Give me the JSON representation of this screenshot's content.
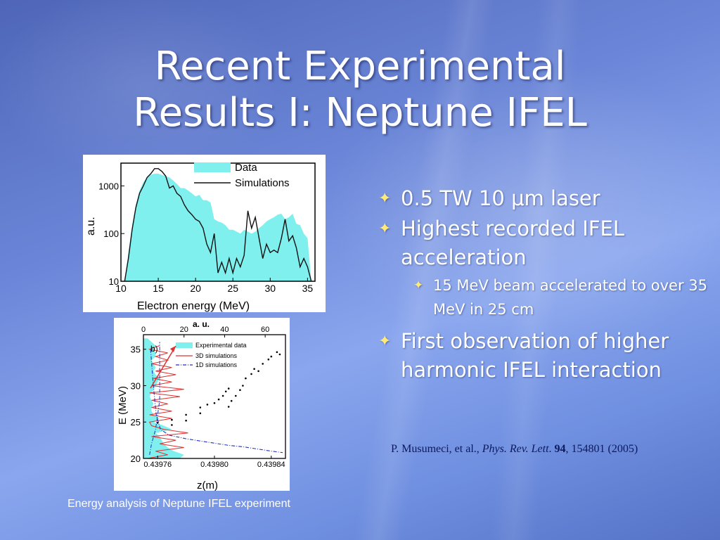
{
  "slide": {
    "title_line1": "Recent Experimental",
    "title_line2": "Results I: Neptune IFEL",
    "caption": "Energy analysis of Neptune IFEL experiment",
    "bullets": {
      "b1_pre": "0.5 TW 10 ",
      "b1_mu": "μ",
      "b1_post": "m laser",
      "b2": "Highest recorded IFEL acceleration",
      "b2_sub": "15 MeV beam accelerated to over 35 MeV in 25 cm",
      "b3": "First observation of higher harmonic IFEL interaction"
    },
    "reference": {
      "authors": "P. Musumeci, et al., ",
      "journal": "Phys. Rev. Lett",
      "dot": ". ",
      "volume": "94",
      "rest": ", 154801 (2005)"
    },
    "icons": {
      "bullet": "star-bullet-icon"
    },
    "colors": {
      "data_fill": "#7ff0ee",
      "simulation_line": "#111111",
      "sim3d_line": "#e03030",
      "sim1d_line": "#2030c0",
      "arrow": "#e03030",
      "bullet_star": "#ffe97a",
      "reference_text": "#0c1a5e"
    }
  },
  "chart_data": [
    {
      "type": "area",
      "xlabel": "Electron energy (MeV)",
      "ylabel": "a.u.",
      "xlim": [
        10,
        36
      ],
      "ylim": [
        10,
        3000
      ],
      "yscale": "log",
      "xticks": [
        10,
        15,
        20,
        25,
        30,
        35
      ],
      "yticks": [
        10,
        100,
        1000
      ],
      "ytick_labels": [
        "10",
        "100",
        "1000"
      ],
      "legend": [
        "Data",
        "Simulations"
      ],
      "legend_position": "top-right",
      "series": [
        {
          "name": "Data",
          "style": "filled",
          "x": [
            10.5,
            11,
            11.5,
            12,
            12.5,
            13,
            13.5,
            14,
            14.5,
            15,
            15.5,
            16,
            16.5,
            17,
            17.5,
            18,
            18.5,
            19,
            19.5,
            20,
            20.5,
            21,
            21.5,
            22,
            22.5,
            23,
            23.5,
            24,
            24.5,
            25,
            25.5,
            26,
            26.5,
            27,
            27.5,
            28,
            28.5,
            29,
            29.5,
            30,
            30.5,
            31,
            31.5,
            32,
            32.5,
            33,
            33.5,
            34,
            34.5,
            35,
            35.5
          ],
          "y": [
            10,
            40,
            150,
            400,
            800,
            1200,
            1500,
            1700,
            1800,
            1800,
            1700,
            1600,
            1500,
            1300,
            1100,
            900,
            900,
            800,
            700,
            600,
            650,
            500,
            500,
            450,
            200,
            180,
            170,
            150,
            120,
            120,
            110,
            100,
            120,
            110,
            100,
            110,
            130,
            150,
            180,
            200,
            220,
            250,
            260,
            200,
            220,
            260,
            160,
            150,
            100,
            80,
            10
          ]
        },
        {
          "name": "Simulations",
          "style": "line",
          "x": [
            10.5,
            11,
            11.5,
            12,
            12.5,
            13,
            13.5,
            14,
            14.5,
            15,
            15.5,
            16,
            16.5,
            17,
            17.5,
            18,
            18.5,
            19,
            19.5,
            20,
            20.5,
            21,
            21.5,
            22,
            22.5,
            23,
            23.5,
            24,
            24.5,
            25,
            25.5,
            26,
            26.5,
            27,
            27.5,
            28,
            28.5,
            29,
            29.5,
            30,
            30.5,
            31,
            31.5,
            32,
            32.5,
            33,
            33.5,
            34,
            34.5,
            35,
            35.5
          ],
          "y": [
            10,
            30,
            120,
            350,
            700,
            1000,
            1500,
            1800,
            2300,
            2300,
            2000,
            1600,
            900,
            1000,
            700,
            600,
            400,
            300,
            250,
            200,
            180,
            130,
            60,
            40,
            100,
            15,
            25,
            15,
            30,
            15,
            30,
            20,
            35,
            300,
            130,
            220,
            80,
            30,
            60,
            40,
            45,
            40,
            80,
            200,
            70,
            90,
            50,
            20,
            30,
            20,
            10
          ]
        }
      ]
    },
    {
      "type": "line",
      "panel_label": "b)",
      "xlabel": "z(m)",
      "ylabel": "E (MeV)",
      "top_xlabel": "a. u.",
      "xlim": [
        0.43975,
        0.43985
      ],
      "ylim": [
        20,
        37
      ],
      "top_xlim": [
        0,
        70
      ],
      "xticks": [
        "0.43976",
        "0.43980",
        "0.43984"
      ],
      "yticks": [
        20,
        25,
        30,
        35
      ],
      "top_xticks": [
        0,
        20,
        40,
        60
      ],
      "legend": [
        "Experimental data",
        "3D simulations",
        "1D simulations"
      ],
      "legend_position": "top-right",
      "spectra_on_top_axis": [
        {
          "name": "Experimental data",
          "style": "filled",
          "E": [
            20,
            20.5,
            21,
            21.5,
            22,
            22.5,
            23,
            23.5,
            24,
            24.5,
            25,
            25.5,
            26,
            26.5,
            27,
            27.5,
            28,
            28.5,
            29,
            29.5,
            30,
            30.5,
            31,
            31.5,
            32,
            32.5,
            33,
            33.5,
            34,
            34.5,
            35,
            35.5,
            36,
            36.5
          ],
          "au": [
            18,
            20,
            15,
            12,
            10,
            9,
            8,
            6,
            14,
            10,
            5,
            8,
            5,
            4,
            4,
            5,
            4,
            3,
            4,
            5,
            6,
            7,
            8,
            6,
            5,
            6,
            5,
            4,
            6,
            6,
            5,
            6,
            4,
            2
          ]
        },
        {
          "name": "3D simulations",
          "style": "line",
          "E": [
            20,
            20.5,
            21,
            21.5,
            22,
            22.5,
            23,
            23.5,
            24,
            24.5,
            25,
            25.5,
            26,
            26.5,
            27,
            27.5,
            28,
            28.5,
            29,
            29.5,
            30,
            30.5,
            31,
            31.5,
            32,
            32.5,
            33,
            33.5,
            34,
            34.5,
            35,
            35.5
          ],
          "au": [
            2,
            12,
            6,
            20,
            8,
            16,
            4,
            22,
            10,
            4,
            3,
            14,
            3,
            14,
            4,
            12,
            4,
            18,
            3,
            20,
            4,
            14,
            5,
            16,
            6,
            14,
            4,
            12,
            6,
            12,
            3,
            8
          ]
        },
        {
          "name": "1D simulations",
          "style": "dash-dot",
          "E": [
            20.5,
            22,
            24,
            26,
            28,
            30,
            32,
            34,
            36
          ],
          "au": [
            3,
            4,
            6,
            7,
            8,
            8,
            8,
            8,
            8
          ]
        }
      ],
      "trajectory_points_z_E": [
        [
          0.43976,
          24.9
        ],
        [
          0.43977,
          24.6
        ],
        [
          0.43977,
          25.3
        ],
        [
          0.43978,
          25.2
        ],
        [
          0.43978,
          26.0
        ],
        [
          0.43979,
          26.2
        ],
        [
          0.43979,
          27.0
        ],
        [
          0.439795,
          27.4
        ],
        [
          0.4398,
          27.6
        ],
        [
          0.439803,
          28.1
        ],
        [
          0.439806,
          28.6
        ],
        [
          0.439808,
          29.2
        ],
        [
          0.43981,
          29.6
        ],
        [
          0.43981,
          27.1
        ],
        [
          0.439812,
          27.9
        ],
        [
          0.439815,
          28.6
        ],
        [
          0.439818,
          29.4
        ],
        [
          0.43982,
          30.0
        ],
        [
          0.439822,
          31.0
        ],
        [
          0.439826,
          31.6
        ],
        [
          0.439828,
          32.3
        ],
        [
          0.439831,
          32.0
        ],
        [
          0.439834,
          33.0
        ],
        [
          0.439838,
          33.6
        ],
        [
          0.43984,
          34.0
        ],
        [
          0.439844,
          34.6
        ],
        [
          0.439846,
          34.3
        ]
      ],
      "sim1d_curve_z_E": [
        [
          0.439755,
          35.0
        ],
        [
          0.439757,
          30.0
        ],
        [
          0.439759,
          26.0
        ],
        [
          0.439762,
          24.0
        ],
        [
          0.439768,
          23.2
        ],
        [
          0.43978,
          22.7
        ],
        [
          0.43979,
          22.4
        ],
        [
          0.4398,
          22.1
        ],
        [
          0.43981,
          21.8
        ],
        [
          0.43982,
          21.6
        ],
        [
          0.43983,
          21.3
        ],
        [
          0.43984,
          21.0
        ],
        [
          0.439848,
          20.8
        ]
      ]
    }
  ]
}
